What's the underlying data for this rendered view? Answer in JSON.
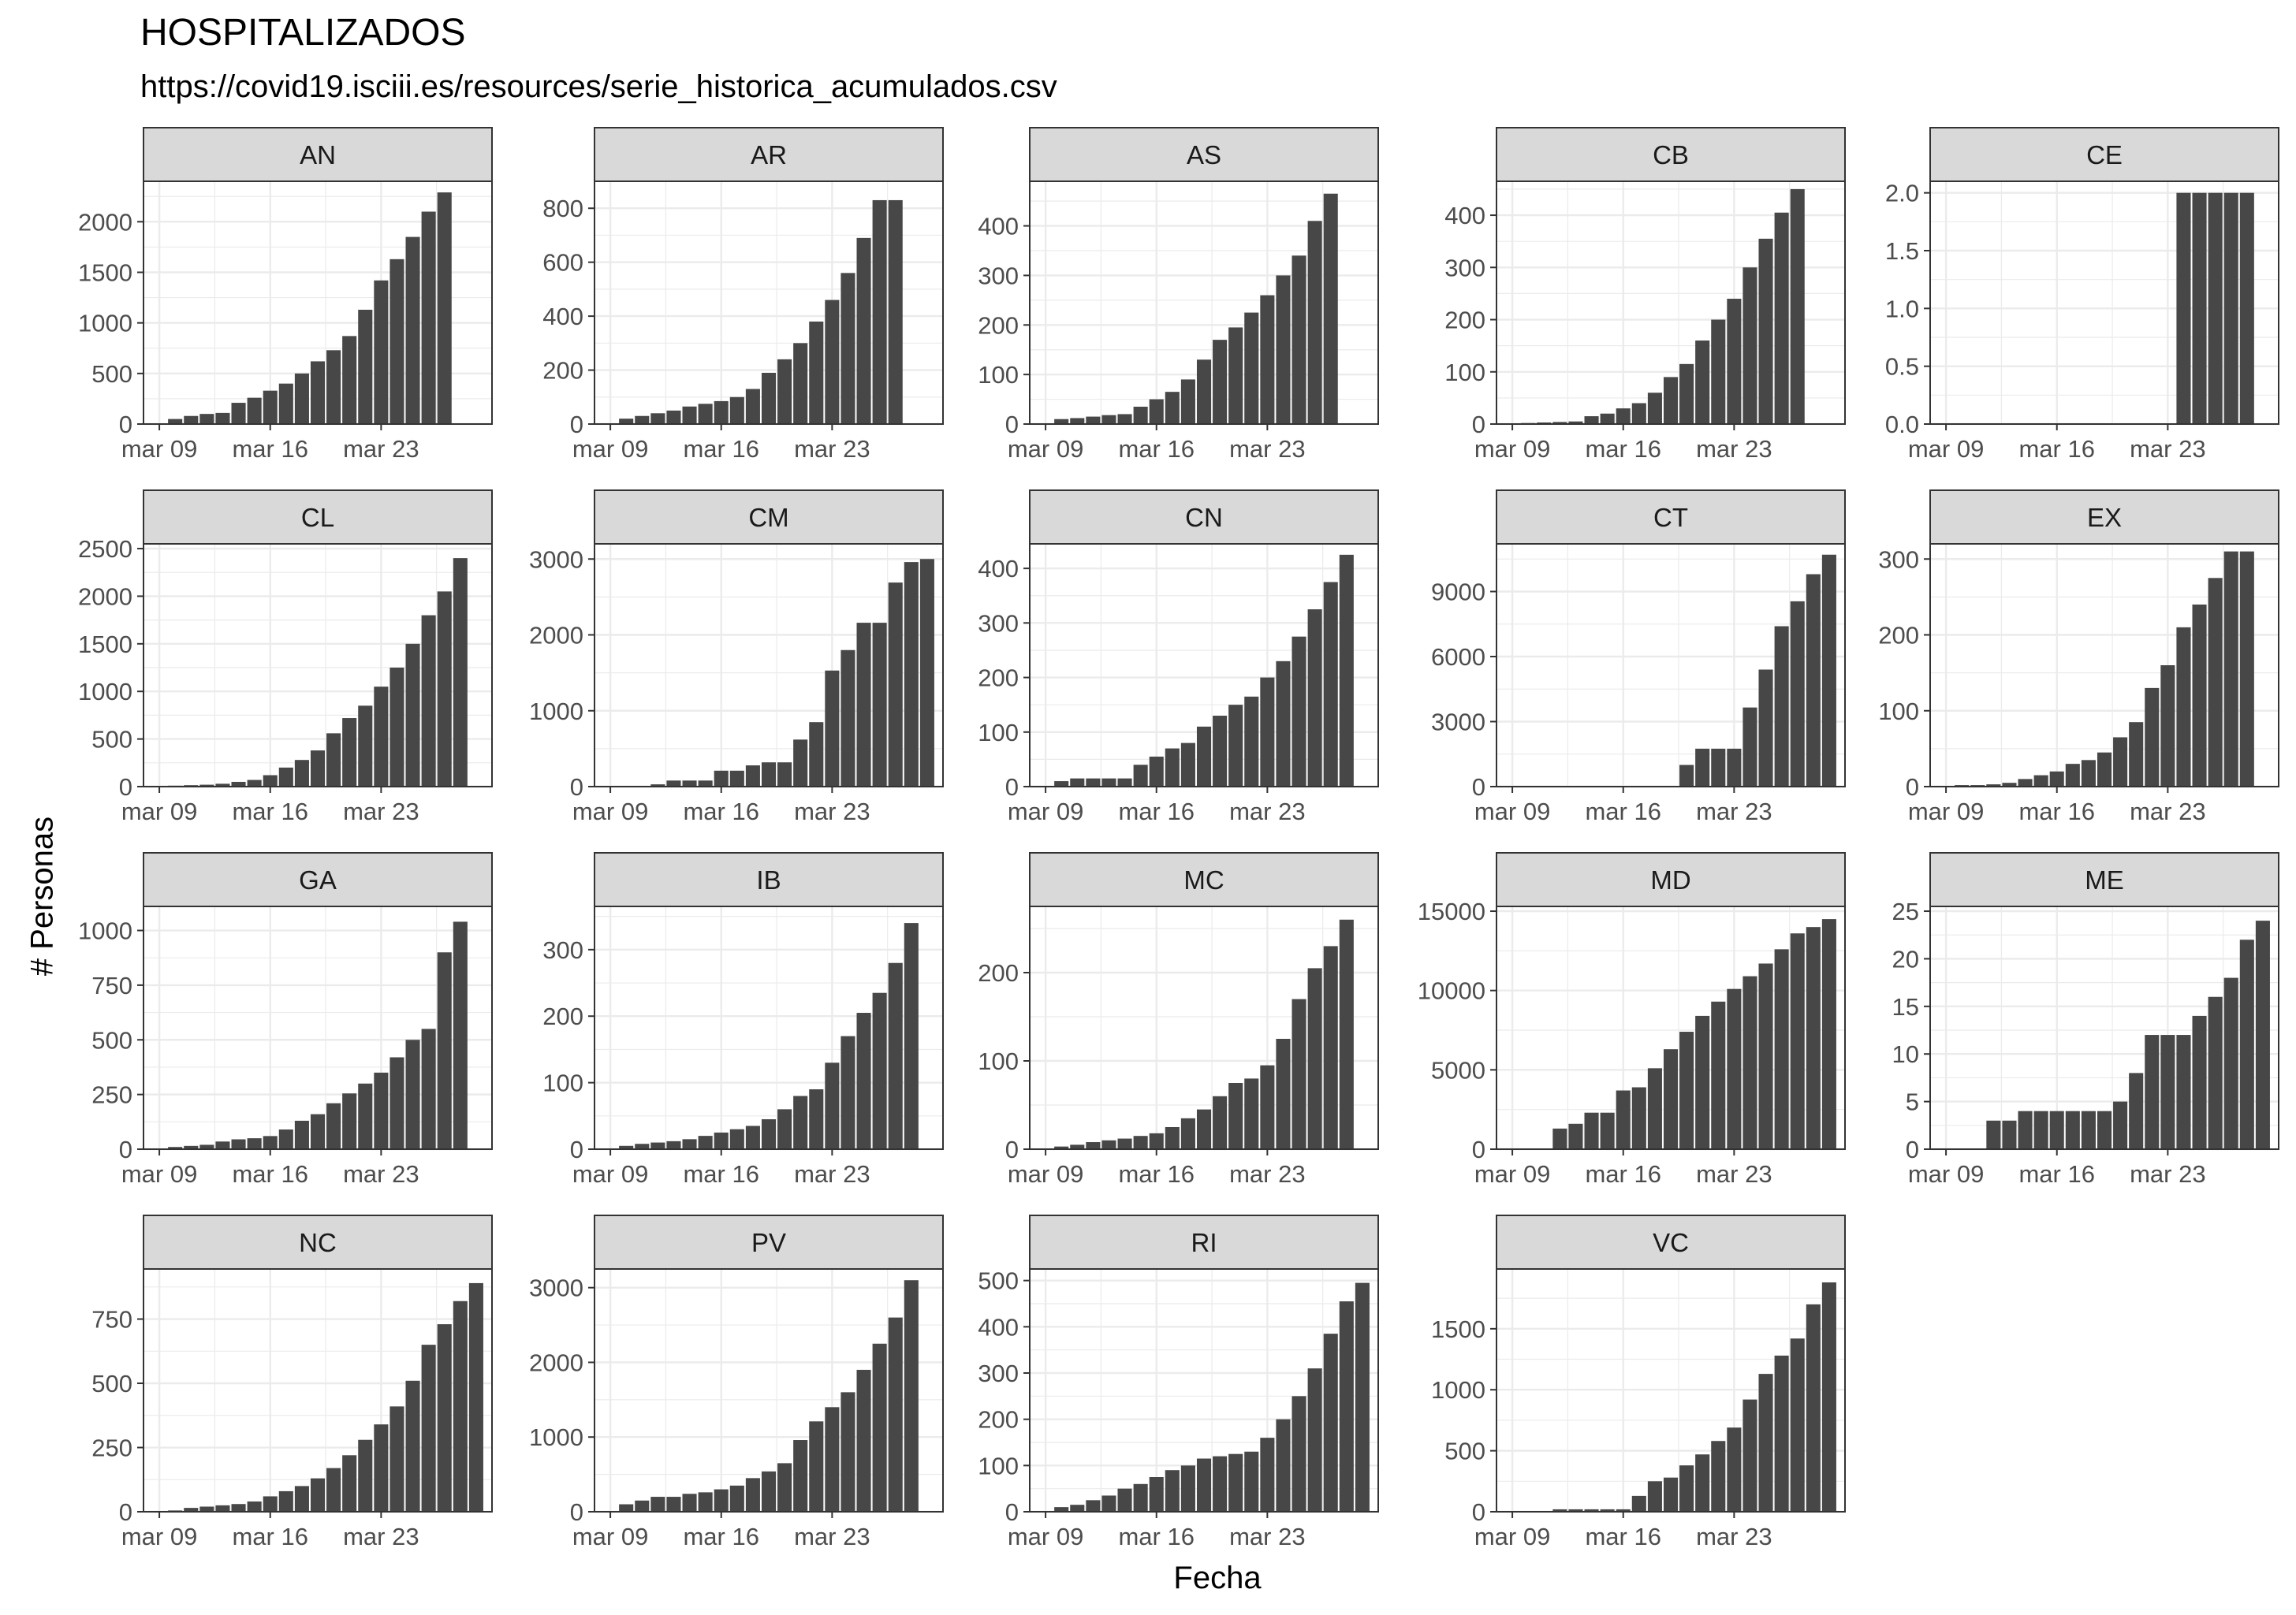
{
  "title": "HOSPITALIZADOS",
  "subtitle": "https://covid19.isciii.es/resources/serie_historica_acumulados.csv",
  "xlabel": "Fecha",
  "ylabel": "# Personas",
  "colors": {
    "bar": "#474747",
    "strip": "#d9d9d9",
    "grid": "#ebebeb",
    "border": "#333333"
  },
  "chart_data": {
    "type": "bar",
    "facet_layout": {
      "columns": 5,
      "rows": 4
    },
    "x_dates": [
      "2020-03-09",
      "2020-03-10",
      "2020-03-11",
      "2020-03-12",
      "2020-03-13",
      "2020-03-14",
      "2020-03-15",
      "2020-03-16",
      "2020-03-17",
      "2020-03-18",
      "2020-03-19",
      "2020-03-20",
      "2020-03-21",
      "2020-03-22",
      "2020-03-23",
      "2020-03-24",
      "2020-03-25",
      "2020-03-26",
      "2020-03-27",
      "2020-03-28",
      "2020-03-29"
    ],
    "x_tick_labels": [
      "mar 09",
      "mar 16",
      "mar 23"
    ],
    "x_tick_dates": [
      "2020-03-09",
      "2020-03-16",
      "2020-03-23"
    ],
    "xlim": [
      "2020-03-08",
      "2020-03-30"
    ],
    "grid": true,
    "facets": [
      {
        "name": "AN",
        "ylim": [
          0,
          2400
        ],
        "yticks": [
          0,
          500,
          1000,
          1500,
          2000
        ],
        "ytick_labels": [
          "0",
          "500",
          "1000",
          "1500",
          "2000"
        ],
        "values": [
          null,
          50,
          80,
          100,
          110,
          210,
          260,
          330,
          400,
          500,
          620,
          730,
          870,
          1130,
          1420,
          1630,
          1850,
          2100,
          2290,
          null,
          null
        ]
      },
      {
        "name": "AR",
        "ylim": [
          0,
          900
        ],
        "yticks": [
          0,
          200,
          400,
          600,
          800
        ],
        "ytick_labels": [
          "0",
          "200",
          "400",
          "600",
          "800"
        ],
        "values": [
          null,
          20,
          30,
          40,
          50,
          65,
          75,
          85,
          100,
          130,
          190,
          240,
          300,
          380,
          460,
          560,
          690,
          830,
          830,
          null,
          null
        ]
      },
      {
        "name": "AS",
        "ylim": [
          0,
          490
        ],
        "yticks": [
          0,
          100,
          200,
          300,
          400
        ],
        "ytick_labels": [
          "0",
          "100",
          "200",
          "300",
          "400"
        ],
        "values": [
          null,
          10,
          12,
          15,
          18,
          20,
          35,
          50,
          65,
          90,
          130,
          170,
          195,
          225,
          260,
          300,
          340,
          410,
          465,
          null,
          null
        ]
      },
      {
        "name": "CB",
        "ylim": [
          0,
          465
        ],
        "yticks": [
          0,
          100,
          200,
          300,
          400
        ],
        "ytick_labels": [
          "0",
          "100",
          "200",
          "300",
          "400"
        ],
        "values": [
          null,
          2,
          3,
          4,
          5,
          15,
          20,
          30,
          40,
          60,
          90,
          115,
          160,
          200,
          240,
          300,
          355,
          405,
          450,
          null,
          null
        ]
      },
      {
        "name": "CE",
        "ylim": [
          0,
          2.1
        ],
        "yticks": [
          0,
          0.5,
          1,
          1.5,
          2
        ],
        "ytick_labels": [
          "0.0",
          "0.5",
          "1.0",
          "1.5",
          "2.0"
        ],
        "values": [
          null,
          null,
          null,
          null,
          null,
          null,
          null,
          null,
          null,
          null,
          null,
          null,
          null,
          null,
          null,
          2,
          2,
          2,
          2,
          2,
          null
        ]
      },
      {
        "name": "CL",
        "ylim": [
          0,
          2550
        ],
        "yticks": [
          0,
          500,
          1000,
          1500,
          2000,
          2500
        ],
        "ytick_labels": [
          "0",
          "500",
          "1000",
          "1500",
          "2000",
          "2500"
        ],
        "values": [
          null,
          10,
          15,
          20,
          30,
          50,
          70,
          120,
          200,
          280,
          380,
          560,
          720,
          850,
          1050,
          1250,
          1500,
          1800,
          2050,
          2400,
          null
        ]
      },
      {
        "name": "CM",
        "ylim": [
          0,
          3200
        ],
        "yticks": [
          0,
          1000,
          2000,
          3000
        ],
        "ytick_labels": [
          "0",
          "1000",
          "2000",
          "3000"
        ],
        "values": [
          null,
          null,
          null,
          30,
          80,
          80,
          80,
          210,
          210,
          280,
          320,
          320,
          620,
          850,
          1530,
          1800,
          2160,
          2160,
          2690,
          2960,
          3000
        ]
      },
      {
        "name": "CN",
        "ylim": [
          0,
          445
        ],
        "yticks": [
          0,
          100,
          200,
          300,
          400
        ],
        "ytick_labels": [
          "0",
          "100",
          "200",
          "300",
          "400"
        ],
        "values": [
          null,
          10,
          15,
          15,
          15,
          15,
          40,
          55,
          70,
          80,
          110,
          130,
          150,
          165,
          200,
          230,
          275,
          325,
          375,
          425,
          null
        ]
      },
      {
        "name": "CT",
        "ylim": [
          0,
          11200
        ],
        "yticks": [
          0,
          3000,
          6000,
          9000
        ],
        "ytick_labels": [
          "0",
          "3000",
          "6000",
          "9000"
        ],
        "values": [
          null,
          null,
          null,
          null,
          null,
          null,
          null,
          null,
          null,
          null,
          null,
          1000,
          1750,
          1750,
          1750,
          3650,
          5400,
          7400,
          8550,
          9800,
          10700
        ]
      },
      {
        "name": "EX",
        "ylim": [
          0,
          320
        ],
        "yticks": [
          0,
          100,
          200,
          300
        ],
        "ytick_labels": [
          "0",
          "100",
          "200",
          "300"
        ],
        "values": [
          null,
          2,
          2,
          3,
          5,
          10,
          15,
          20,
          30,
          35,
          45,
          65,
          85,
          130,
          160,
          210,
          240,
          275,
          310,
          310,
          null
        ]
      },
      {
        "name": "GA",
        "ylim": [
          0,
          1110
        ],
        "yticks": [
          0,
          250,
          500,
          750,
          1000
        ],
        "ytick_labels": [
          "0",
          "250",
          "500",
          "750",
          "1000"
        ],
        "values": [
          null,
          10,
          15,
          20,
          35,
          45,
          50,
          60,
          90,
          130,
          160,
          210,
          255,
          300,
          350,
          420,
          500,
          550,
          900,
          1040,
          null
        ]
      },
      {
        "name": "IB",
        "ylim": [
          0,
          365
        ],
        "yticks": [
          0,
          100,
          200,
          300
        ],
        "ytick_labels": [
          "0",
          "100",
          "200",
          "300"
        ],
        "values": [
          null,
          5,
          8,
          10,
          12,
          15,
          20,
          25,
          30,
          35,
          45,
          60,
          80,
          90,
          130,
          170,
          205,
          235,
          280,
          340,
          null
        ]
      },
      {
        "name": "MC",
        "ylim": [
          0,
          275
        ],
        "yticks": [
          0,
          100,
          200
        ],
        "ytick_labels": [
          "0",
          "100",
          "200"
        ],
        "values": [
          null,
          3,
          5,
          8,
          10,
          12,
          15,
          18,
          25,
          35,
          45,
          60,
          75,
          80,
          95,
          125,
          170,
          205,
          230,
          260,
          null
        ]
      },
      {
        "name": "MD",
        "ylim": [
          0,
          15300
        ],
        "yticks": [
          0,
          5000,
          10000,
          15000
        ],
        "ytick_labels": [
          "0",
          "5000",
          "10000",
          "15000"
        ],
        "values": [
          null,
          null,
          null,
          1300,
          1600,
          2300,
          2300,
          3700,
          3900,
          5100,
          6300,
          7400,
          8400,
          9300,
          10100,
          10900,
          11700,
          12600,
          13600,
          14000,
          14500
        ]
      },
      {
        "name": "ME",
        "ylim": [
          0,
          25.5
        ],
        "yticks": [
          0,
          5,
          10,
          15,
          20,
          25
        ],
        "ytick_labels": [
          "0",
          "5",
          "10",
          "15",
          "20",
          "25"
        ],
        "values": [
          null,
          null,
          null,
          3,
          3,
          4,
          4,
          4,
          4,
          4,
          4,
          5,
          8,
          12,
          12,
          12,
          14,
          16,
          18,
          22,
          24
        ]
      },
      {
        "name": "NC",
        "ylim": [
          0,
          945
        ],
        "yticks": [
          0,
          250,
          500,
          750
        ],
        "ytick_labels": [
          "0",
          "250",
          "500",
          "750"
        ],
        "values": [
          null,
          5,
          15,
          20,
          25,
          30,
          40,
          60,
          80,
          100,
          130,
          170,
          220,
          280,
          340,
          410,
          510,
          650,
          730,
          820,
          890
        ]
      },
      {
        "name": "PV",
        "ylim": [
          0,
          3250
        ],
        "yticks": [
          0,
          1000,
          2000,
          3000
        ],
        "ytick_labels": [
          "0",
          "1000",
          "2000",
          "3000"
        ],
        "values": [
          null,
          100,
          150,
          200,
          200,
          240,
          260,
          300,
          350,
          450,
          540,
          650,
          960,
          1210,
          1400,
          1600,
          1900,
          2250,
          2600,
          3100,
          null
        ]
      },
      {
        "name": "RI",
        "ylim": [
          0,
          525
        ],
        "yticks": [
          0,
          100,
          200,
          300,
          400,
          500
        ],
        "ytick_labels": [
          "0",
          "100",
          "200",
          "300",
          "400",
          "500"
        ],
        "values": [
          null,
          10,
          15,
          25,
          35,
          50,
          60,
          75,
          90,
          100,
          115,
          120,
          125,
          130,
          160,
          200,
          250,
          310,
          385,
          455,
          495
        ]
      },
      {
        "name": "VC",
        "ylim": [
          0,
          1990
        ],
        "yticks": [
          0,
          500,
          1000,
          1500
        ],
        "ytick_labels": [
          "0",
          "500",
          "1000",
          "1500"
        ],
        "values": [
          null,
          null,
          null,
          20,
          20,
          20,
          20,
          20,
          130,
          250,
          280,
          380,
          470,
          580,
          690,
          920,
          1130,
          1280,
          1420,
          1700,
          1880
        ]
      }
    ]
  }
}
